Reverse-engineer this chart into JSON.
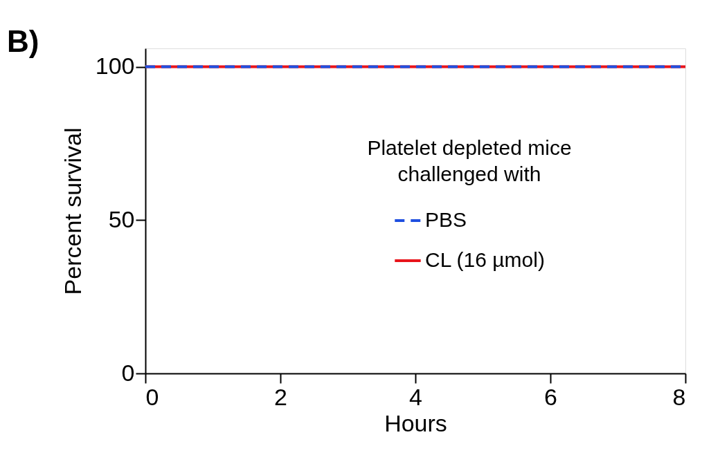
{
  "chart_data": {
    "type": "line",
    "xlabel": "Hours",
    "ylabel": "Percent survival",
    "legend_title": "Platelet depleted mice challenged with",
    "x": [
      0,
      8
    ],
    "series": [
      {
        "name": "PBS",
        "color": "#1f4fe0",
        "line_style": "dashed",
        "values": [
          100,
          100
        ]
      },
      {
        "name": "CL (16 µmol)",
        "color": "#e8141b",
        "line_style": "solid",
        "values": [
          100,
          100
        ]
      }
    ],
    "xlim": [
      0,
      8
    ],
    "xticks": [
      0,
      2,
      4,
      6,
      8
    ],
    "ylim": [
      0,
      106
    ],
    "yticks": [
      0,
      50,
      100
    ],
    "grid": false,
    "legend": "center",
    "marker": "none",
    "annotations": [
      "B)"
    ]
  }
}
